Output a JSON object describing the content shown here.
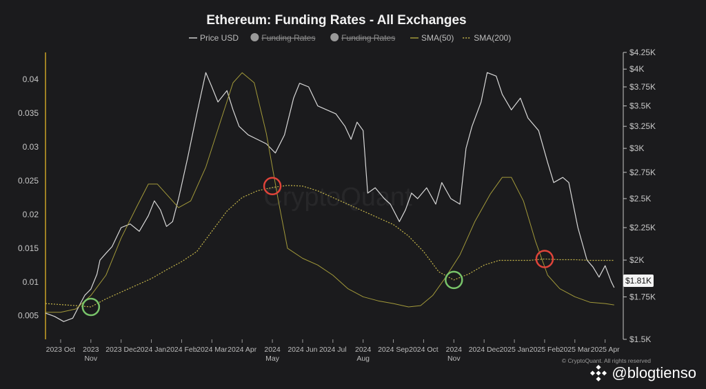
{
  "chart_data": {
    "type": "line",
    "title": "Ethereum: Funding Rates - All Exchanges",
    "legend": [
      {
        "name": "Price USD",
        "style": "solid",
        "color": "#cfcfcf",
        "hidden": false
      },
      {
        "name": "Funding Rates",
        "style": "dot",
        "color": "#9a9a9a",
        "hidden": true
      },
      {
        "name": "Funding Rates",
        "style": "dot",
        "color": "#9a9a9a",
        "hidden": true
      },
      {
        "name": "SMA(50)",
        "style": "solid",
        "color": "#a39a3a",
        "hidden": false
      },
      {
        "name": "SMA(200)",
        "style": "dotted",
        "color": "#c8b84a",
        "hidden": false
      }
    ],
    "left_axis": {
      "ylim": [
        0.0015,
        0.044
      ],
      "ticks": [
        0.005,
        0.01,
        0.015,
        0.02,
        0.025,
        0.03,
        0.035,
        0.04
      ],
      "tick_labels": [
        "0.005",
        "0.01",
        "0.015",
        "0.02",
        "0.025",
        "0.03",
        "0.035",
        "0.04"
      ]
    },
    "right_axis": {
      "scale": "log",
      "ylim": [
        1500,
        4250
      ],
      "ticks": [
        1500,
        1750,
        2000,
        2250,
        2500,
        2750,
        3000,
        3250,
        3500,
        3750,
        4000,
        4250
      ],
      "tick_labels": [
        "$1.5K",
        "$1.75K",
        "$2K",
        "$2.25K",
        "$2.5K",
        "$2.75K",
        "$3K",
        "$3.25K",
        "$3.5K",
        "$3.75K",
        "$4K",
        "$4.25K"
      ]
    },
    "x_axis": {
      "xlim": [
        0,
        19.1
      ],
      "ticks": [
        {
          "x": 0.5,
          "line1": "2023 Oct",
          "line2": ""
        },
        {
          "x": 1.5,
          "line1": "2023",
          "line2": "Nov"
        },
        {
          "x": 2.5,
          "line1": "2023 Dec",
          "line2": ""
        },
        {
          "x": 3.5,
          "line1": "2024 Jan",
          "line2": ""
        },
        {
          "x": 4.5,
          "line1": "2024 Feb",
          "line2": ""
        },
        {
          "x": 5.5,
          "line1": "2024 Mar",
          "line2": ""
        },
        {
          "x": 6.5,
          "line1": "2024 Apr",
          "line2": ""
        },
        {
          "x": 7.5,
          "line1": "2024",
          "line2": "May"
        },
        {
          "x": 8.5,
          "line1": "2024 Jun",
          "line2": ""
        },
        {
          "x": 9.5,
          "line1": "2024 Jul",
          "line2": ""
        },
        {
          "x": 10.5,
          "line1": "2024",
          "line2": "Aug"
        },
        {
          "x": 11.5,
          "line1": "2024 Sep",
          "line2": ""
        },
        {
          "x": 12.5,
          "line1": "2024 Oct",
          "line2": ""
        },
        {
          "x": 13.5,
          "line1": "2024",
          "line2": "Nov"
        },
        {
          "x": 14.5,
          "line1": "2024 Dec",
          "line2": ""
        },
        {
          "x": 15.5,
          "line1": "2025 Jan",
          "line2": ""
        },
        {
          "x": 16.5,
          "line1": "2025 Feb",
          "line2": ""
        },
        {
          "x": 17.5,
          "line1": "2025 Mar",
          "line2": ""
        },
        {
          "x": 18.5,
          "line1": "2025 Apr",
          "line2": ""
        }
      ]
    },
    "series": [
      {
        "name": "Price USD",
        "axis": "right",
        "points": [
          [
            0,
            1650
          ],
          [
            0.3,
            1630
          ],
          [
            0.6,
            1600
          ],
          [
            0.9,
            1620
          ],
          [
            1.1,
            1690
          ],
          [
            1.3,
            1760
          ],
          [
            1.5,
            1800
          ],
          [
            1.7,
            1900
          ],
          [
            1.8,
            2000
          ],
          [
            2.0,
            2050
          ],
          [
            2.2,
            2100
          ],
          [
            2.5,
            2250
          ],
          [
            2.8,
            2280
          ],
          [
            3.1,
            2220
          ],
          [
            3.4,
            2350
          ],
          [
            3.6,
            2480
          ],
          [
            3.8,
            2400
          ],
          [
            4.0,
            2260
          ],
          [
            4.2,
            2300
          ],
          [
            4.4,
            2500
          ],
          [
            4.7,
            2900
          ],
          [
            5.0,
            3400
          ],
          [
            5.3,
            3950
          ],
          [
            5.5,
            3750
          ],
          [
            5.7,
            3550
          ],
          [
            6.0,
            3700
          ],
          [
            6.2,
            3450
          ],
          [
            6.4,
            3250
          ],
          [
            6.7,
            3150
          ],
          [
            7.0,
            3100
          ],
          [
            7.3,
            3050
          ],
          [
            7.6,
            2950
          ],
          [
            7.9,
            3150
          ],
          [
            8.2,
            3600
          ],
          [
            8.4,
            3800
          ],
          [
            8.7,
            3750
          ],
          [
            9.0,
            3500
          ],
          [
            9.3,
            3450
          ],
          [
            9.6,
            3400
          ],
          [
            9.9,
            3250
          ],
          [
            10.1,
            3100
          ],
          [
            10.3,
            3300
          ],
          [
            10.5,
            3200
          ],
          [
            10.65,
            2550
          ],
          [
            10.9,
            2600
          ],
          [
            11.2,
            2500
          ],
          [
            11.4,
            2450
          ],
          [
            11.7,
            2300
          ],
          [
            11.9,
            2400
          ],
          [
            12.1,
            2550
          ],
          [
            12.3,
            2500
          ],
          [
            12.6,
            2600
          ],
          [
            12.9,
            2450
          ],
          [
            13.1,
            2650
          ],
          [
            13.4,
            2500
          ],
          [
            13.7,
            2450
          ],
          [
            13.9,
            3000
          ],
          [
            14.1,
            3250
          ],
          [
            14.4,
            3550
          ],
          [
            14.6,
            3950
          ],
          [
            14.9,
            3900
          ],
          [
            15.1,
            3650
          ],
          [
            15.4,
            3450
          ],
          [
            15.7,
            3600
          ],
          [
            15.95,
            3350
          ],
          [
            16.3,
            3200
          ],
          [
            16.6,
            2850
          ],
          [
            16.8,
            2650
          ],
          [
            17.1,
            2700
          ],
          [
            17.3,
            2650
          ],
          [
            17.6,
            2250
          ],
          [
            17.9,
            2000
          ],
          [
            18.1,
            1950
          ],
          [
            18.3,
            1880
          ],
          [
            18.5,
            1960
          ],
          [
            18.7,
            1850
          ],
          [
            18.8,
            1810
          ]
        ]
      },
      {
        "name": "SMA(50)",
        "axis": "left",
        "points": [
          [
            0,
            0.0055
          ],
          [
            0.5,
            0.0055
          ],
          [
            1.0,
            0.006
          ],
          [
            1.5,
            0.008
          ],
          [
            2.0,
            0.011
          ],
          [
            2.5,
            0.0165
          ],
          [
            3.0,
            0.021
          ],
          [
            3.4,
            0.0245
          ],
          [
            3.7,
            0.0245
          ],
          [
            4.0,
            0.023
          ],
          [
            4.4,
            0.021
          ],
          [
            4.8,
            0.022
          ],
          [
            5.3,
            0.027
          ],
          [
            5.8,
            0.034
          ],
          [
            6.2,
            0.0395
          ],
          [
            6.5,
            0.041
          ],
          [
            6.9,
            0.0395
          ],
          [
            7.3,
            0.032
          ],
          [
            7.7,
            0.022
          ],
          [
            8.0,
            0.015
          ],
          [
            8.5,
            0.0135
          ],
          [
            9.0,
            0.0125
          ],
          [
            9.5,
            0.011
          ],
          [
            10.0,
            0.009
          ],
          [
            10.5,
            0.0078
          ],
          [
            11.0,
            0.0072
          ],
          [
            11.5,
            0.0068
          ],
          [
            12.0,
            0.0063
          ],
          [
            12.4,
            0.0065
          ],
          [
            12.8,
            0.008
          ],
          [
            13.2,
            0.0105
          ],
          [
            13.7,
            0.014
          ],
          [
            14.2,
            0.019
          ],
          [
            14.7,
            0.023
          ],
          [
            15.1,
            0.0255
          ],
          [
            15.4,
            0.0255
          ],
          [
            15.8,
            0.022
          ],
          [
            16.2,
            0.016
          ],
          [
            16.6,
            0.011
          ],
          [
            17.0,
            0.009
          ],
          [
            17.5,
            0.0078
          ],
          [
            18.0,
            0.007
          ],
          [
            18.5,
            0.0068
          ],
          [
            18.8,
            0.0066
          ]
        ]
      },
      {
        "name": "SMA(200)",
        "axis": "left",
        "points": [
          [
            0,
            0.0068
          ],
          [
            1.0,
            0.0065
          ],
          [
            1.5,
            0.0063
          ],
          [
            2.0,
            0.0075
          ],
          [
            2.5,
            0.0085
          ],
          [
            3.0,
            0.0095
          ],
          [
            3.5,
            0.0105
          ],
          [
            4.0,
            0.0118
          ],
          [
            4.5,
            0.013
          ],
          [
            5.0,
            0.0145
          ],
          [
            5.5,
            0.0175
          ],
          [
            6.0,
            0.0205
          ],
          [
            6.5,
            0.0225
          ],
          [
            7.0,
            0.0235
          ],
          [
            7.5,
            0.024
          ],
          [
            8.0,
            0.0243
          ],
          [
            8.5,
            0.0242
          ],
          [
            9.0,
            0.0235
          ],
          [
            9.5,
            0.0225
          ],
          [
            10.0,
            0.0215
          ],
          [
            10.5,
            0.0205
          ],
          [
            11.0,
            0.0195
          ],
          [
            11.5,
            0.0185
          ],
          [
            12.0,
            0.0168
          ],
          [
            12.5,
            0.0145
          ],
          [
            13.0,
            0.0115
          ],
          [
            13.5,
            0.0103
          ],
          [
            14.0,
            0.0112
          ],
          [
            14.5,
            0.0125
          ],
          [
            15.0,
            0.0132
          ],
          [
            15.5,
            0.0132
          ],
          [
            16.0,
            0.0132
          ],
          [
            16.5,
            0.0134
          ],
          [
            17.0,
            0.0133
          ],
          [
            17.5,
            0.0133
          ],
          [
            18.0,
            0.0132
          ],
          [
            18.5,
            0.0132
          ],
          [
            18.8,
            0.0132
          ]
        ]
      }
    ],
    "annotations": [
      {
        "type": "circle",
        "color": "#79c46a",
        "x": 1.5,
        "y": 0.0063,
        "axis": "left",
        "meaning": "golden cross"
      },
      {
        "type": "circle",
        "color": "#e0443a",
        "x": 7.5,
        "y": 0.0242,
        "axis": "left",
        "meaning": "death cross"
      },
      {
        "type": "circle",
        "color": "#79c46a",
        "x": 13.5,
        "y": 0.0103,
        "axis": "left",
        "meaning": "golden cross"
      },
      {
        "type": "circle",
        "color": "#e0443a",
        "x": 16.5,
        "y": 0.0134,
        "axis": "left",
        "meaning": "death cross"
      }
    ],
    "last_price_label": "$1.81K",
    "watermark": "CryptoQuant",
    "copyright": "© CryptoQuant. All rights reserved"
  },
  "overlay": {
    "handle": "@blogtienso"
  },
  "colors": {
    "background": "#1b1b1d",
    "price": "#d9d9d9",
    "sma50": "#a39a3a",
    "sma200": "#c8b84a",
    "left_axis": "#c9a227",
    "right_axis": "#c8c8c8"
  }
}
